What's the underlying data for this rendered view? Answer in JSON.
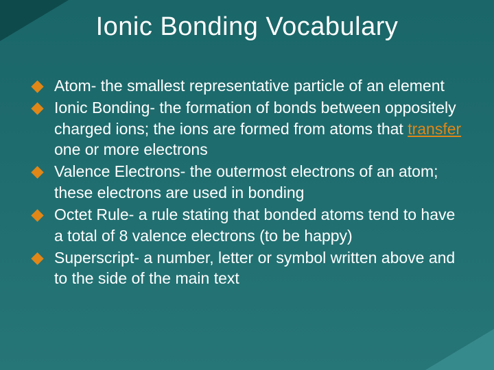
{
  "slide": {
    "title": "Ionic Bonding Vocabulary",
    "title_color": "#ffffff",
    "title_fontsize": 38,
    "background_gradient_top": "#1a6668",
    "background_gradient_bottom": "#267577",
    "corner_tl_color": "#0e4a4c",
    "corner_br_color": "#378a8c",
    "bullet_color": "#e08718",
    "text_color": "#ffffff",
    "emphasis_color": "#e08718",
    "body_fontsize": 23,
    "body_line_height": 1.32,
    "items": [
      {
        "before": "Atom- the smallest representative particle of an element",
        "emph": "",
        "after": ""
      },
      {
        "before": "Ionic Bonding- the formation of bonds between oppositely charged ions; the ions are formed from atoms that ",
        "emph": "transfer",
        "after": " one or more electrons"
      },
      {
        "before": "Valence Electrons- the outermost electrons of an atom; these electrons are used in bonding",
        "emph": "",
        "after": ""
      },
      {
        "before": "Octet Rule- a rule stating that bonded atoms tend to have a total of 8 valence electrons (to be happy)",
        "emph": "",
        "after": ""
      },
      {
        "before": "Superscript- a number, letter or symbol written above and to the side of the main text",
        "emph": "",
        "after": ""
      }
    ]
  }
}
